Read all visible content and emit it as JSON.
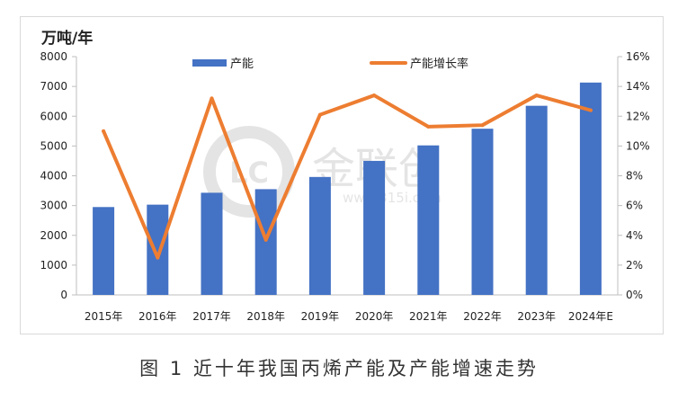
{
  "caption": "图 1  近十年我国丙烯产能及产能增速走势",
  "watermark": {
    "text": "金联创",
    "url": "www.315i.com"
  },
  "colors": {
    "bar": "#4472c4",
    "line": "#ed7d31"
  },
  "chart_data": {
    "type": "bar+line",
    "title": "",
    "y_unit_label": "万吨/年",
    "categories": [
      "2015年",
      "2016年",
      "2017年",
      "2018年",
      "2019年",
      "2020年",
      "2021年",
      "2022年",
      "2023年",
      "2024年E"
    ],
    "series": [
      {
        "name": "产能",
        "type": "bar",
        "axis": "left",
        "values": [
          2950,
          3030,
          3430,
          3550,
          3960,
          4500,
          5020,
          5580,
          6350,
          7130
        ]
      },
      {
        "name": "产能增长率",
        "type": "line",
        "axis": "right",
        "values": [
          0.11,
          0.025,
          0.132,
          0.037,
          0.121,
          0.134,
          0.113,
          0.114,
          0.134,
          0.124
        ]
      }
    ],
    "y_left": {
      "min": 0,
      "max": 8000,
      "step": 1000
    },
    "y_right": {
      "min": 0,
      "max": 0.16,
      "step": 0.02,
      "format": "percent"
    },
    "legend": {
      "position": "top",
      "items": [
        "产能",
        "产能增长率"
      ]
    },
    "grid": false
  }
}
